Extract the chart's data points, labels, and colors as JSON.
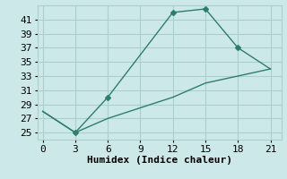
{
  "title": "",
  "xlabel": "Humidex (Indice chaleur)",
  "ylabel": "",
  "background_color": "#cce8e8",
  "line_color": "#2e7d6e",
  "grid_color": "#aacfcf",
  "x_upper": [
    0,
    3,
    6,
    12,
    15,
    18,
    21
  ],
  "y_upper": [
    28,
    25,
    30,
    42,
    42.5,
    37,
    34
  ],
  "x_lower": [
    0,
    3,
    6,
    12,
    15,
    21
  ],
  "y_lower": [
    28,
    25,
    27,
    30,
    32,
    34
  ],
  "xlim": [
    -0.5,
    22
  ],
  "ylim": [
    24,
    43
  ],
  "xticks": [
    0,
    3,
    6,
    9,
    12,
    15,
    18,
    21
  ],
  "yticks": [
    25,
    27,
    29,
    31,
    33,
    35,
    37,
    39,
    41
  ],
  "fontsize": 8,
  "marker": "D",
  "markersize": 3
}
